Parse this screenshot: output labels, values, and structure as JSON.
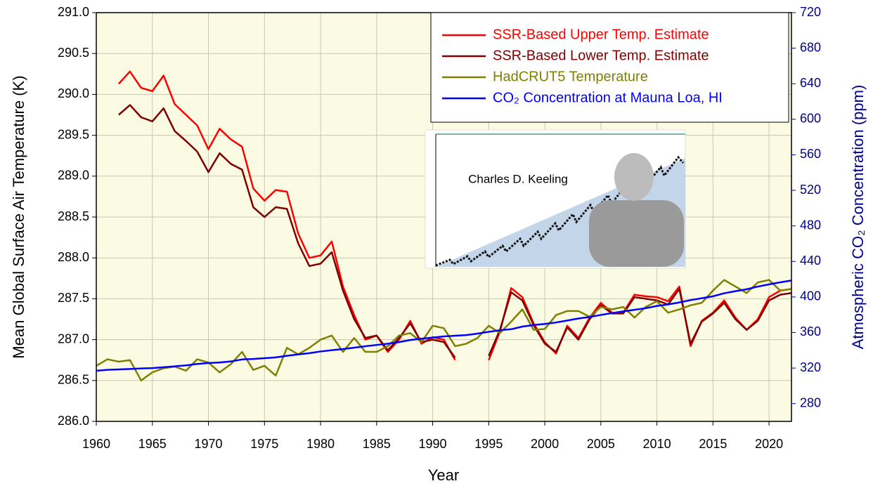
{
  "chart_data": {
    "type": "line",
    "xlabel": "Year",
    "ylabel": "Mean Global Surface Air Temperature (K)",
    "y2label": "Atmospheric CO₂ Concentration (ppm)",
    "inset_label": "Charles D. Keeling",
    "legend": "upper right",
    "grid": true,
    "xlim": [
      1960,
      2022
    ],
    "xticks": [
      1960,
      1965,
      1970,
      1975,
      1980,
      1985,
      1990,
      1995,
      2000,
      2005,
      2010,
      2015,
      2020
    ],
    "ylim": [
      286,
      291
    ],
    "yticks": [
      {
        "value": 286,
        "label": "286.0"
      },
      286.5,
      {
        "value": 287,
        "label": "287.0"
      },
      287.5,
      {
        "value": 288,
        "label": "288.0"
      },
      288.5,
      {
        "value": 289,
        "label": "289.0"
      },
      289.5,
      {
        "value": 290,
        "label": "290.0"
      },
      290.5,
      {
        "value": 291,
        "label": "291.0"
      }
    ],
    "y2lim": [
      260,
      720
    ],
    "y2ticks": [
      280,
      320,
      360,
      400,
      440,
      480,
      520,
      560,
      600,
      640,
      680,
      720
    ],
    "x": [
      1960,
      1961,
      1962,
      1963,
      1964,
      1965,
      1966,
      1967,
      1968,
      1969,
      1970,
      1971,
      1972,
      1973,
      1974,
      1975,
      1976,
      1977,
      1978,
      1979,
      1980,
      1981,
      1982,
      1983,
      1984,
      1985,
      1986,
      1987,
      1988,
      1989,
      1990,
      1991,
      1992,
      1993,
      1994,
      1995,
      1996,
      1997,
      1998,
      1999,
      2000,
      2001,
      2002,
      2003,
      2004,
      2005,
      2006,
      2007,
      2008,
      2009,
      2010,
      2011,
      2012,
      2013,
      2014,
      2015,
      2016,
      2017,
      2018,
      2019,
      2020,
      2021,
      2022
    ],
    "series": [
      {
        "name": "SSR-Based Upper Temp. Estimate",
        "color": "#ff0000",
        "values": [
          null,
          null,
          290.13,
          290.28,
          290.08,
          290.04,
          290.23,
          289.88,
          289.75,
          289.62,
          289.33,
          289.58,
          289.45,
          289.36,
          288.85,
          288.7,
          288.83,
          288.81,
          288.3,
          288.0,
          288.03,
          288.2,
          287.65,
          287.3,
          287.0,
          287.05,
          286.85,
          287.0,
          287.23,
          286.95,
          287.03,
          287.0,
          286.75,
          null,
          null,
          286.75,
          287.1,
          287.63,
          287.52,
          287.2,
          286.97,
          286.83,
          287.17,
          287.02,
          287.27,
          287.45,
          287.33,
          287.33,
          287.55,
          287.53,
          287.52,
          287.47,
          287.65,
          286.92,
          287.23,
          287.33,
          287.48,
          287.27,
          287.12,
          287.25,
          287.52,
          287.6,
          287.62
        ]
      },
      {
        "name": "SSR-Based Lower Temp. Estimate",
        "color": "#800000",
        "values": [
          null,
          null,
          289.75,
          289.87,
          289.72,
          289.67,
          289.83,
          289.55,
          289.43,
          289.3,
          289.05,
          289.28,
          289.15,
          289.08,
          288.62,
          288.5,
          288.62,
          288.6,
          288.18,
          287.9,
          287.93,
          288.07,
          287.6,
          287.25,
          287.02,
          287.05,
          286.87,
          287.02,
          287.2,
          286.97,
          287.0,
          286.97,
          286.78,
          null,
          null,
          286.8,
          287.12,
          287.58,
          287.48,
          287.18,
          286.95,
          286.85,
          287.15,
          287.0,
          287.25,
          287.42,
          287.32,
          287.32,
          287.52,
          287.5,
          287.48,
          287.43,
          287.62,
          286.95,
          287.22,
          287.32,
          287.45,
          287.25,
          287.12,
          287.23,
          287.48,
          287.55,
          287.57
        ]
      },
      {
        "name": "HadCRUT5 Temperature",
        "color": "#808000",
        "values": [
          286.68,
          286.76,
          286.73,
          286.75,
          286.5,
          286.6,
          286.65,
          286.67,
          286.62,
          286.76,
          286.72,
          286.6,
          286.7,
          286.85,
          286.63,
          286.68,
          286.56,
          286.9,
          286.82,
          286.9,
          287.0,
          287.05,
          286.85,
          287.02,
          286.85,
          286.85,
          286.92,
          287.05,
          287.08,
          286.97,
          287.17,
          287.14,
          286.92,
          286.95,
          287.02,
          287.17,
          287.08,
          287.22,
          287.37,
          287.12,
          287.13,
          287.3,
          287.35,
          287.35,
          287.28,
          287.4,
          287.37,
          287.4,
          287.27,
          287.4,
          287.47,
          287.33,
          287.37,
          287.42,
          287.45,
          287.6,
          287.73,
          287.65,
          287.57,
          287.7,
          287.73,
          287.6,
          287.62
        ]
      },
      {
        "name": "CO₂ Concentration at Mauna Loa, HI",
        "color": "#0000ff",
        "axis": "y2",
        "values": [
          317,
          318,
          318.5,
          319,
          319.6,
          320,
          321,
          322,
          323,
          324.6,
          325.7,
          326.3,
          327.5,
          329.7,
          330.2,
          331.1,
          332,
          333.8,
          335.4,
          336.8,
          338.7,
          340.1,
          341.4,
          343,
          344.6,
          346,
          347.4,
          349.2,
          351.6,
          353.1,
          354.4,
          355.6,
          356.4,
          357.1,
          358.8,
          360.8,
          362.6,
          363.7,
          366.7,
          368.4,
          369.7,
          371.3,
          373.5,
          375.8,
          377.5,
          379.8,
          381.9,
          383.8,
          385.6,
          387.4,
          389.9,
          391.6,
          393.9,
          396.5,
          398.6,
          400.8,
          404.2,
          406.5,
          408.7,
          411.7,
          414.2,
          416.5,
          418.6
        ]
      }
    ]
  }
}
